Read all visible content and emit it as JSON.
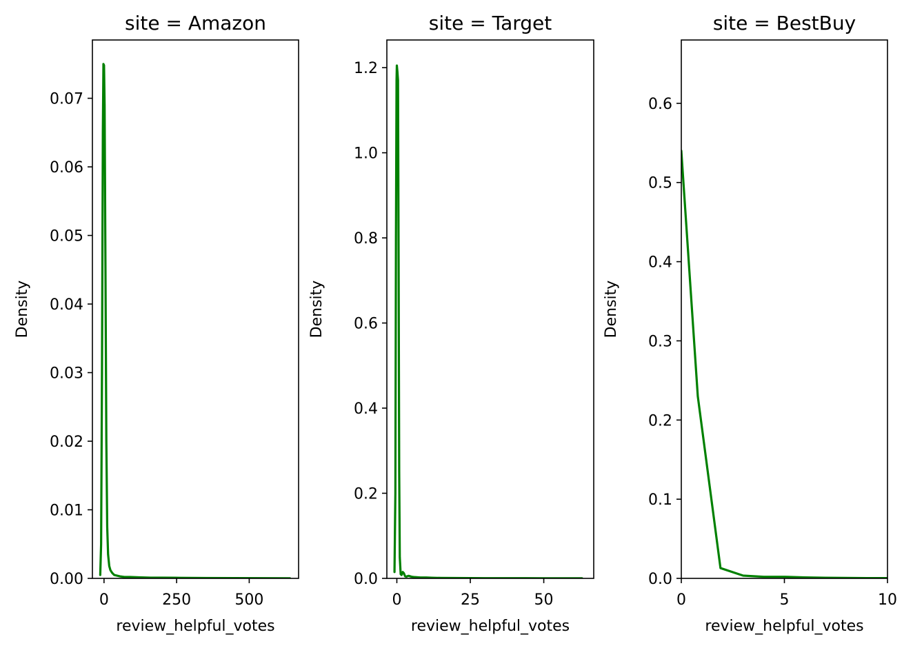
{
  "chart_data": [
    {
      "type": "line",
      "title": "site = Amazon",
      "xlabel": "review_helpful_votes",
      "ylabel": "Density",
      "xlim": [
        -40,
        670
      ],
      "ylim": [
        0,
        0.0785
      ],
      "xticks": [
        0,
        250,
        500
      ],
      "xtick_labels": [
        "0",
        "250",
        "500"
      ],
      "yticks": [
        0,
        0.01,
        0.02,
        0.03,
        0.04,
        0.05,
        0.06,
        0.07
      ],
      "ytick_labels": [
        "0.00",
        "0.01",
        "0.02",
        "0.03",
        "0.04",
        "0.05",
        "0.06",
        "0.07"
      ],
      "grid": false,
      "color": "#008000",
      "series": [
        {
          "x": [
            -13,
            -10,
            -7,
            -4,
            -2,
            0,
            2,
            5,
            8,
            11,
            14,
            18,
            22,
            28,
            35,
            45,
            55,
            70,
            90,
            120,
            160,
            200,
            260,
            350,
            450,
            550,
            640
          ],
          "y": [
            0.0005,
            0.005,
            0.03,
            0.065,
            0.075,
            0.0748,
            0.069,
            0.045,
            0.02,
            0.0075,
            0.0035,
            0.0018,
            0.0012,
            0.0008,
            0.0005,
            0.0004,
            0.0003,
            0.0002,
            0.0002,
            0.00015,
            0.0001,
            0.0001,
            8e-05,
            5e-05,
            4e-05,
            3e-05,
            2e-05
          ]
        }
      ]
    },
    {
      "type": "line",
      "title": "site = Target",
      "xlabel": "review_helpful_votes",
      "ylabel": "Density",
      "xlim": [
        -3.4,
        67
      ],
      "ylim": [
        0,
        1.265
      ],
      "xticks": [
        0,
        25,
        50
      ],
      "xtick_labels": [
        "0",
        "25",
        "50"
      ],
      "yticks": [
        0,
        0.2,
        0.4,
        0.6,
        0.8,
        1.0,
        1.2
      ],
      "ytick_labels": [
        "0.0",
        "0.2",
        "0.4",
        "0.6",
        "0.8",
        "1.0",
        "1.2"
      ],
      "grid": false,
      "color": "#008000",
      "series": [
        {
          "x": [
            -0.8,
            -0.5,
            -0.3,
            -0.1,
            0,
            0.2,
            0.4,
            0.6,
            0.8,
            1.0,
            1.3,
            1.6,
            2.0,
            2.4,
            2.8,
            3.2,
            4,
            5,
            6,
            8,
            10,
            12,
            15,
            20,
            30,
            40,
            50,
            63
          ],
          "y": [
            0.015,
            0.2,
            0.8,
            1.17,
            1.205,
            1.19,
            1.17,
            0.75,
            0.25,
            0.05,
            0.01,
            0.008,
            0.015,
            0.012,
            0.005,
            0.004,
            0.006,
            0.004,
            0.003,
            0.002,
            0.002,
            0.0015,
            0.001,
            0.0008,
            0.0005,
            0.0004,
            0.0003,
            0.0002
          ]
        }
      ]
    },
    {
      "type": "line",
      "title": "site = BestBuy",
      "xlabel": "review_helpful_votes",
      "ylabel": "Density",
      "xlim": [
        0,
        10
      ],
      "ylim": [
        0,
        0.68
      ],
      "xticks": [
        0,
        5,
        10
      ],
      "xtick_labels": [
        "0",
        "5",
        "10"
      ],
      "yticks": [
        0,
        0.1,
        0.2,
        0.3,
        0.4,
        0.5,
        0.6
      ],
      "ytick_labels": [
        "0.0",
        "0.1",
        "0.2",
        "0.3",
        "0.4",
        "0.5",
        "0.6"
      ],
      "grid": false,
      "color": "#008000",
      "series": [
        {
          "x": [
            0,
            0.8,
            1.9,
            3.0,
            4.0,
            5.0,
            6.0,
            7.0,
            8.0,
            9.0,
            10.0
          ],
          "y": [
            0.54,
            0.23,
            0.013,
            0.0035,
            0.002,
            0.002,
            0.0012,
            0.0008,
            0.0006,
            0.0004,
            0.0003
          ]
        }
      ]
    }
  ]
}
